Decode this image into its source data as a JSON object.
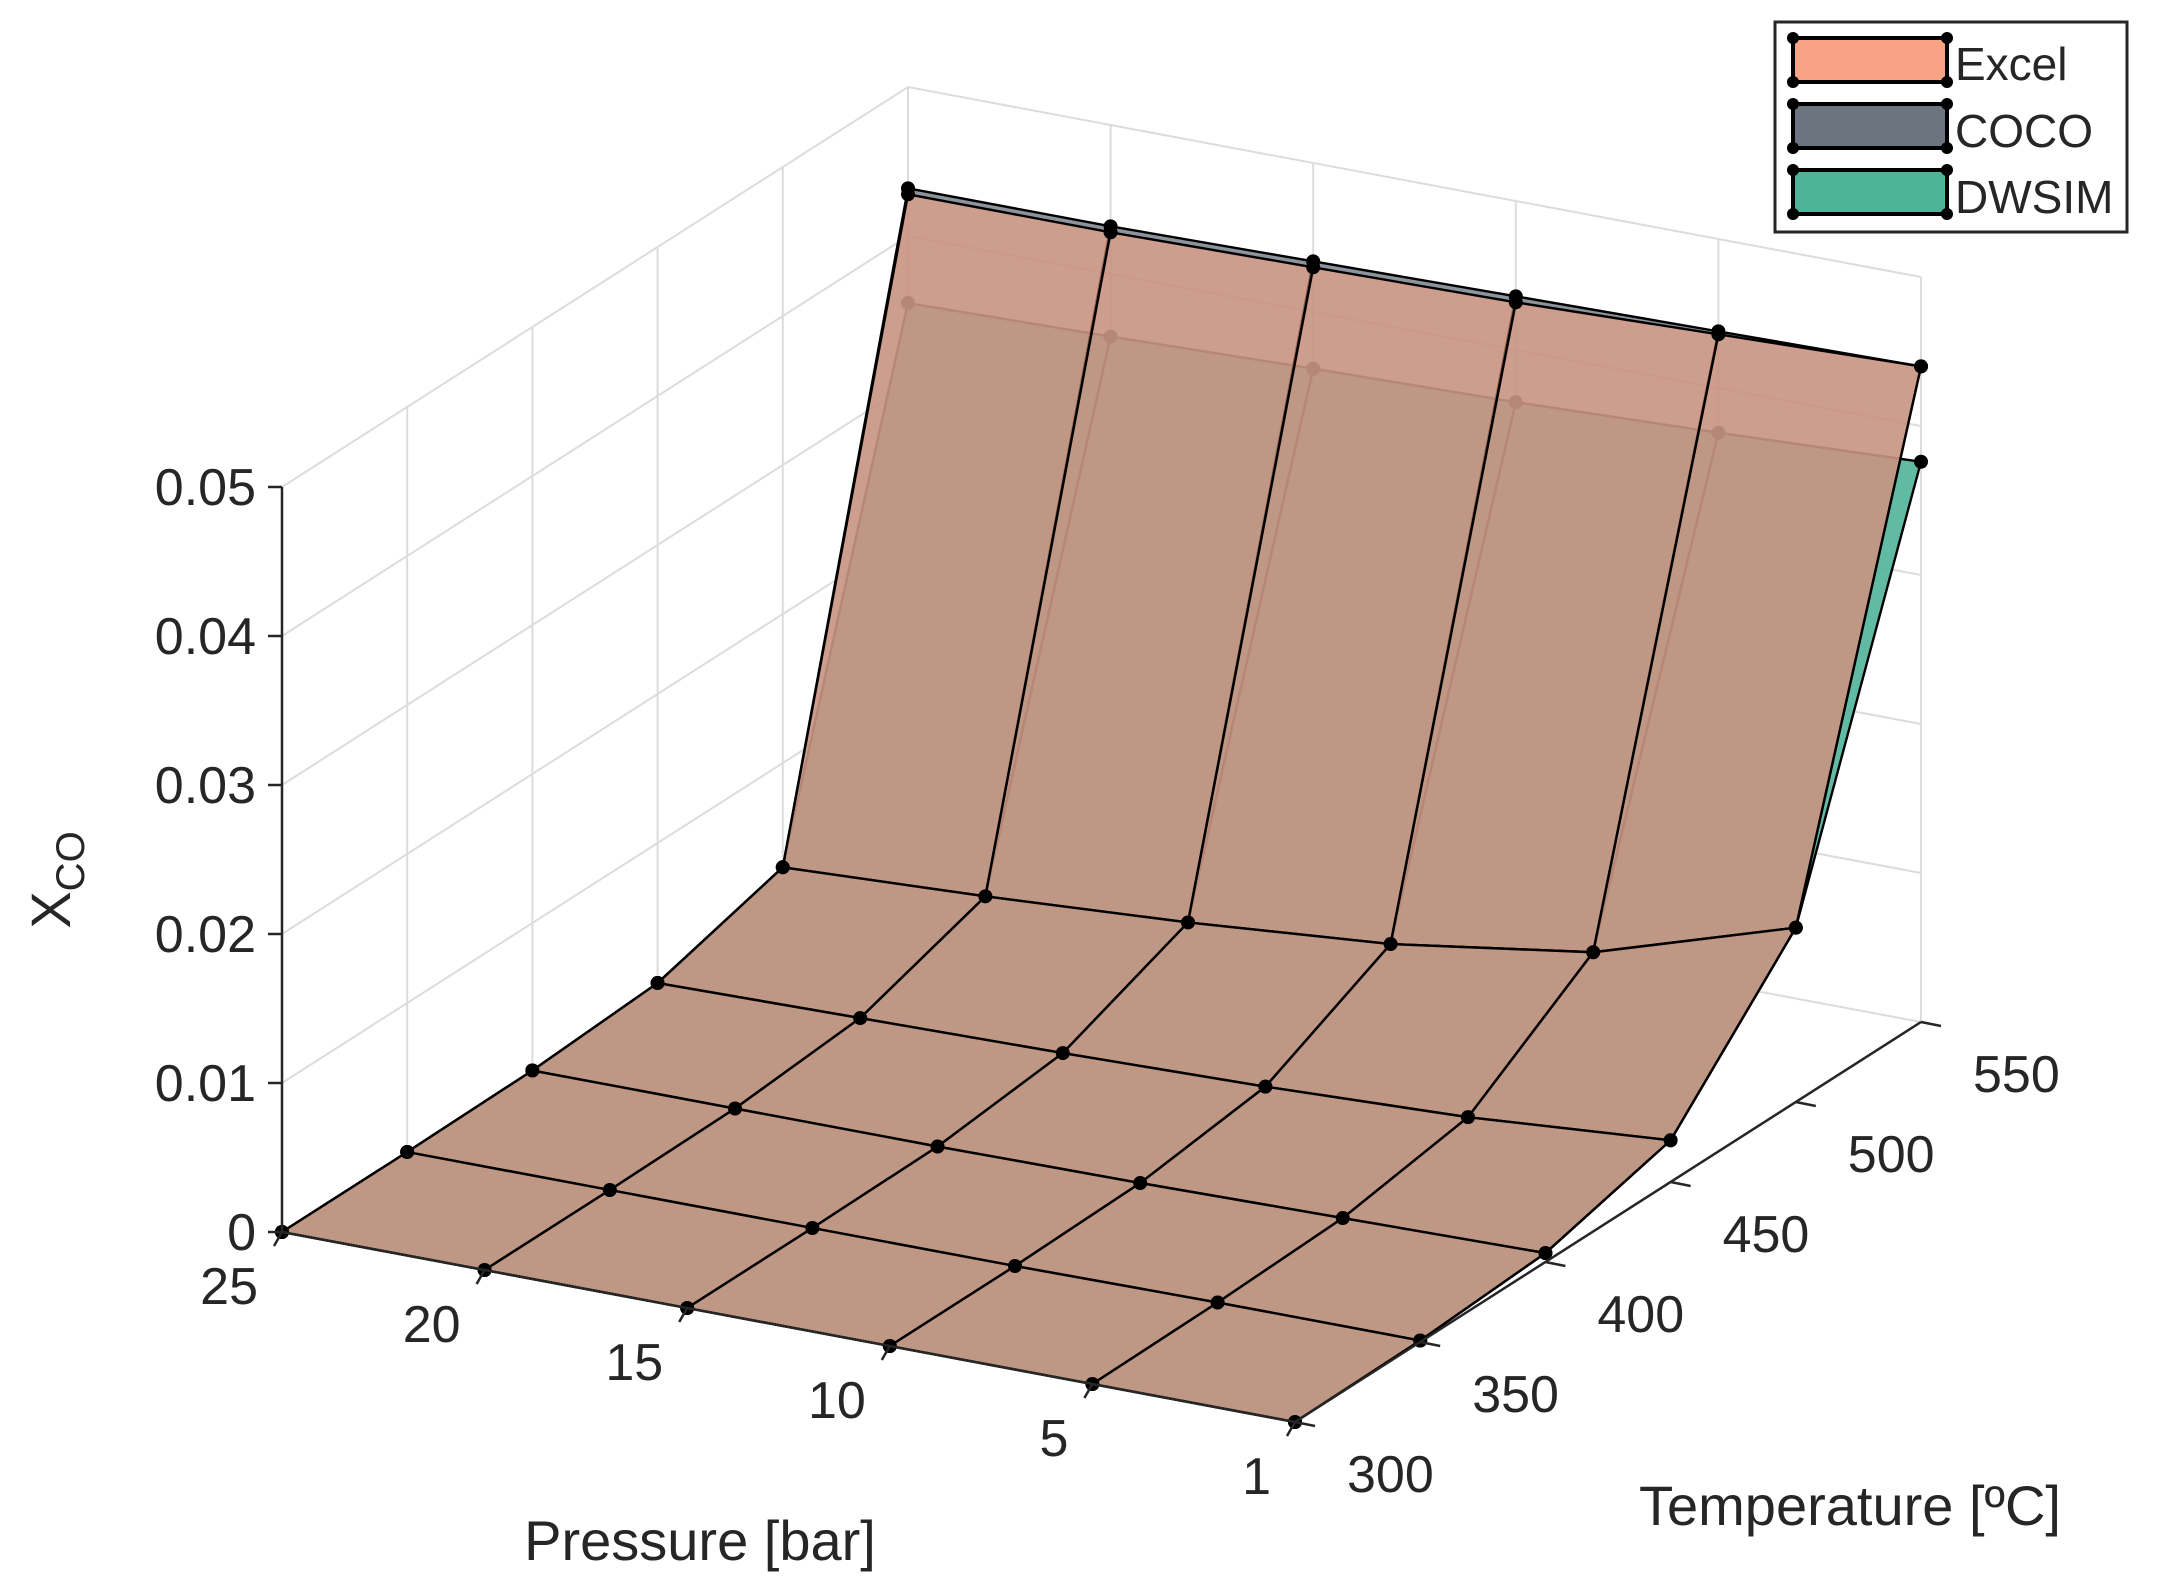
{
  "chart_data": {
    "type": "surface3d",
    "title": "",
    "xlabel": "Pressure [bar]",
    "ylabel": "Temperature [ºC]",
    "zlabel_main": "X",
    "zlabel_sub": "CO",
    "pressure": [
      25,
      20,
      15,
      10,
      5,
      1
    ],
    "temperature": [
      300,
      350,
      400,
      450,
      500,
      550
    ],
    "zlim": [
      0,
      0.05
    ],
    "z_ticks": [
      "0",
      "0.01",
      "0.02",
      "0.03",
      "0.04",
      "0.05"
    ],
    "pressure_ticks": [
      "25",
      "20",
      "15",
      "10",
      "5",
      "1"
    ],
    "temperature_ticks": [
      "300",
      "350",
      "400",
      "450",
      "500",
      "550"
    ],
    "grid": true,
    "legend_position": "top-right",
    "series": [
      {
        "name": "Excel",
        "color": "#f8a383",
        "values": [
          [
            0.0,
            0.0,
            0.0001,
            0.0006,
            0.003,
            0.0428
          ],
          [
            0.0,
            0.0,
            0.0001,
            0.0008,
            0.0036,
            0.0428
          ],
          [
            0.0,
            0.0,
            0.0001,
            0.001,
            0.0044,
            0.043
          ],
          [
            0.0,
            0.0,
            0.0002,
            0.0013,
            0.0055,
            0.0432
          ],
          [
            0.0,
            0.0001,
            0.0004,
            0.0018,
            0.0075,
            0.0436
          ],
          [
            0.0,
            0.0001,
            0.0006,
            0.0028,
            0.0117,
            0.044
          ]
        ]
      },
      {
        "name": "COCO",
        "color": "#6c7480",
        "values": [
          [
            0.0,
            0.0,
            0.0001,
            0.0006,
            0.003,
            0.0432
          ],
          [
            0.0,
            0.0,
            0.0001,
            0.0008,
            0.0036,
            0.0432
          ],
          [
            0.0,
            0.0,
            0.0001,
            0.001,
            0.0044,
            0.0434
          ],
          [
            0.0,
            0.0,
            0.0002,
            0.0013,
            0.0055,
            0.0436
          ],
          [
            0.0,
            0.0001,
            0.0004,
            0.0018,
            0.0075,
            0.0438
          ],
          [
            0.0,
            0.0001,
            0.0006,
            0.0028,
            0.0117,
            0.044
          ]
        ]
      },
      {
        "name": "DWSIM",
        "color": "#4fb39a",
        "values": [
          [
            0.0,
            0.0,
            0.0001,
            0.0006,
            0.003,
            0.0355
          ],
          [
            0.0,
            0.0,
            0.0001,
            0.0008,
            0.0036,
            0.0358
          ],
          [
            0.0,
            0.0,
            0.0001,
            0.001,
            0.0044,
            0.0362
          ],
          [
            0.0,
            0.0,
            0.0002,
            0.0013,
            0.0055,
            0.0365
          ],
          [
            0.0,
            0.0001,
            0.0004,
            0.0018,
            0.0075,
            0.037
          ],
          [
            0.0,
            0.0001,
            0.0006,
            0.0028,
            0.0117,
            0.0376
          ]
        ]
      }
    ]
  }
}
